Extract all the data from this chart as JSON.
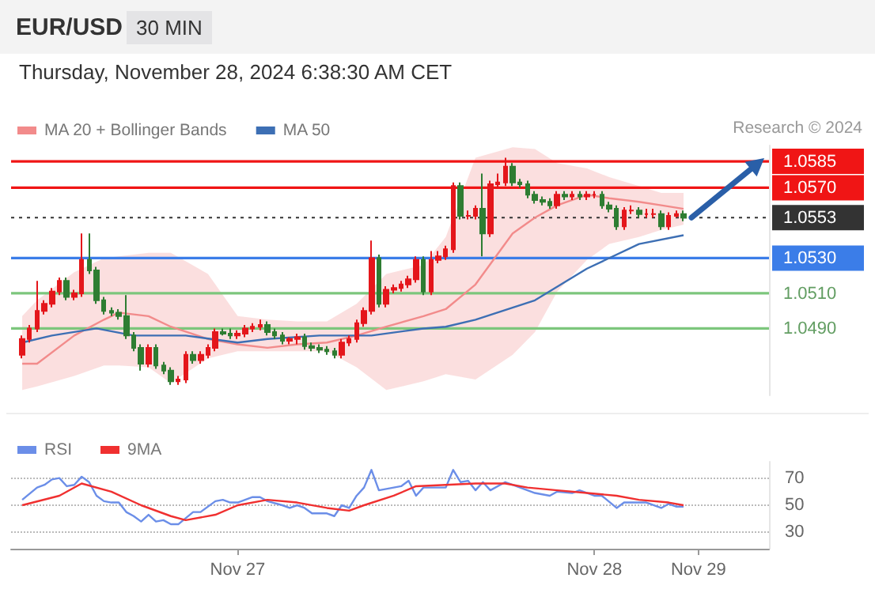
{
  "chart_data": [
    {
      "type": "candlestick",
      "title": "EUR/USD",
      "subtitle": "Thursday, November 28, 2024 6:38:30 AM CET",
      "annotations": [
        "30 MIN",
        "Research © 2024"
      ],
      "categories": [
        null,
        null,
        null,
        null,
        null,
        null,
        null,
        null,
        null,
        null,
        null,
        null,
        null,
        null,
        null,
        null,
        null,
        null,
        null,
        null,
        null,
        null,
        null,
        null,
        null,
        null,
        null,
        null,
        null,
        null,
        null,
        null,
        null,
        null,
        null,
        null,
        null,
        null,
        null,
        null,
        null,
        null,
        null,
        null,
        null,
        null,
        null,
        null,
        null,
        null,
        null,
        null,
        null,
        null,
        null,
        null,
        null,
        null,
        null,
        null,
        null,
        null,
        null,
        null,
        null,
        null,
        null,
        null,
        null,
        null,
        null,
        null,
        null,
        null,
        null,
        null,
        null,
        null,
        null,
        null,
        null,
        null,
        null,
        null,
        null,
        null,
        null,
        null,
        null,
        null,
        null,
        null,
        null,
        null,
        null,
        null,
        null,
        null,
        null,
        null,
        null,
        null
      ],
      "ohlc": [
        null,
        [
          1.0475,
          1.0486,
          1.0473,
          1.0484
        ],
        [
          1.0484,
          1.0492,
          1.0482,
          1.049
        ],
        [
          1.049,
          1.0517,
          1.0488,
          1.05
        ],
        [
          1.05,
          1.0506,
          1.0498,
          1.0504
        ],
        [
          1.0504,
          1.0513,
          1.0502,
          1.0511
        ],
        [
          1.0511,
          1.0519,
          1.0509,
          1.0517
        ],
        [
          1.0517,
          1.0519,
          1.0506,
          1.0508
        ],
        [
          1.0508,
          1.0512,
          1.0506,
          1.051
        ],
        [
          1.051,
          1.0544,
          1.0508,
          1.0529
        ],
        [
          1.0529,
          1.0544,
          1.0521,
          1.0523
        ],
        [
          1.0523,
          1.0525,
          1.0504,
          1.0506
        ],
        [
          1.0506,
          1.0508,
          1.0498,
          1.05
        ],
        [
          1.05,
          1.0502,
          1.0497,
          1.0499
        ],
        [
          1.0499,
          1.0501,
          1.0495,
          1.0497
        ],
        [
          1.0497,
          1.0509,
          1.0484,
          1.0486
        ],
        [
          1.0486,
          1.0488,
          1.0477,
          1.0479
        ],
        [
          1.0479,
          1.0481,
          1.0466,
          1.047
        ],
        [
          1.047,
          1.0481,
          1.0468,
          1.0479
        ],
        [
          1.0479,
          1.0481,
          1.0467,
          1.0469
        ],
        [
          1.0469,
          1.0471,
          1.0464,
          1.0466
        ],
        [
          1.0466,
          1.0468,
          1.0458,
          1.046
        ],
        [
          1.046,
          1.0463,
          1.0458,
          1.0461
        ],
        [
          1.0461,
          1.0477,
          1.0459,
          1.0475
        ],
        [
          1.0475,
          1.0477,
          1.047,
          1.0472
        ],
        [
          1.0472,
          1.0477,
          1.047,
          1.0475
        ],
        [
          1.0475,
          1.0481,
          1.0473,
          1.0479
        ],
        [
          1.0479,
          1.049,
          1.0477,
          1.0488
        ],
        [
          1.0488,
          1.049,
          1.0486,
          1.0487
        ],
        [
          1.0487,
          1.049,
          1.0484,
          1.0486
        ],
        [
          1.0486,
          1.0489,
          1.0484,
          1.0487
        ],
        [
          1.0487,
          1.0492,
          1.0485,
          1.049
        ],
        [
          1.049,
          1.0493,
          1.0488,
          1.0491
        ],
        [
          1.0491,
          1.0495,
          1.0489,
          1.0492
        ],
        [
          1.0492,
          1.0494,
          1.0486,
          1.0488
        ],
        [
          1.0488,
          1.049,
          1.0484,
          1.0486
        ],
        [
          1.0486,
          1.0488,
          1.0481,
          1.0483
        ],
        [
          1.0483,
          1.0485,
          1.0481,
          1.0484
        ],
        [
          1.0484,
          1.0487,
          1.0481,
          1.0485
        ],
        [
          1.0485,
          1.0487,
          1.0478,
          1.048
        ],
        [
          1.048,
          1.0482,
          1.0477,
          1.0479
        ],
        [
          1.0479,
          1.0481,
          1.0476,
          1.0478
        ],
        [
          1.0478,
          1.048,
          1.0475,
          1.0477
        ],
        [
          1.0477,
          1.0479,
          1.0473,
          1.0475
        ],
        [
          1.0475,
          1.0484,
          1.0473,
          1.0482
        ],
        [
          1.0482,
          1.0486,
          1.048,
          1.0484
        ],
        [
          1.0484,
          1.0495,
          1.0482,
          1.0493
        ],
        [
          1.0493,
          1.0502,
          1.0491,
          1.05
        ],
        [
          1.05,
          1.054,
          1.0498,
          1.053
        ],
        [
          1.053,
          1.0532,
          1.0502,
          1.0504
        ],
        [
          1.0504,
          1.0514,
          1.0502,
          1.0512
        ],
        [
          1.0512,
          1.0515,
          1.051,
          1.0513
        ],
        [
          1.0513,
          1.0517,
          1.0511,
          1.0515
        ],
        [
          1.0515,
          1.052,
          1.0513,
          1.0518
        ],
        [
          1.0518,
          1.0531,
          1.0516,
          1.0529
        ],
        [
          1.0529,
          1.0531,
          1.0509,
          1.0511
        ],
        [
          1.0511,
          1.0534,
          1.0509,
          1.0529
        ],
        [
          1.0529,
          1.0534,
          1.0527,
          1.0531
        ],
        [
          1.0531,
          1.0537,
          1.0529,
          1.0535
        ],
        [
          1.0535,
          1.0573,
          1.0533,
          1.0571
        ],
        [
          1.0571,
          1.0573,
          1.0552,
          1.0554
        ],
        [
          1.0554,
          1.0557,
          1.0552,
          1.0554
        ],
        [
          1.0554,
          1.056,
          1.0552,
          1.0558
        ],
        [
          1.0558,
          1.0578,
          1.0531,
          1.0544
        ],
        [
          1.0544,
          1.0574,
          1.0542,
          1.0572
        ],
        [
          1.0572,
          1.0578,
          1.057,
          1.0573
        ],
        [
          1.0573,
          1.0587,
          1.0571,
          1.0582
        ],
        [
          1.0582,
          1.0584,
          1.0571,
          1.0573
        ],
        [
          1.0573,
          1.0575,
          1.057,
          1.0572
        ],
        [
          1.0572,
          1.0574,
          1.0564,
          1.0566
        ],
        [
          1.0566,
          1.0568,
          1.0561,
          1.0563
        ],
        [
          1.0563,
          1.0565,
          1.056,
          1.0562
        ],
        [
          1.0562,
          1.0564,
          1.0558,
          1.056
        ],
        [
          1.056,
          1.0568,
          1.0558,
          1.0566
        ],
        [
          1.0566,
          1.0568,
          1.0563,
          1.0565
        ],
        [
          1.0565,
          1.0568,
          1.0563,
          1.0566
        ],
        [
          1.0566,
          1.0568,
          1.0563,
          1.0565
        ],
        [
          1.0565,
          1.0568,
          1.0563,
          1.0566
        ],
        [
          1.0566,
          1.0568,
          1.0564,
          1.0566
        ],
        [
          1.0566,
          1.0568,
          1.0558,
          1.056
        ],
        [
          1.056,
          1.0562,
          1.0556,
          1.0558
        ],
        [
          1.0558,
          1.056,
          1.0546,
          1.0548
        ],
        [
          1.0548,
          1.0559,
          1.0546,
          1.0557
        ],
        [
          1.0557,
          1.056,
          1.0555,
          1.0557
        ],
        [
          1.0557,
          1.0559,
          1.0553,
          1.0555
        ],
        [
          1.0555,
          1.0558,
          1.0553,
          1.0555
        ],
        [
          1.0555,
          1.0558,
          1.0553,
          1.0555
        ],
        [
          1.0555,
          1.0557,
          1.0546,
          1.0548
        ],
        [
          1.0548,
          1.0556,
          1.0546,
          1.0554
        ],
        [
          1.0554,
          1.0557,
          1.0553,
          1.0555
        ],
        [
          1.0555,
          1.0557,
          1.0551,
          1.0553
        ],
        null,
        null,
        null,
        null,
        null,
        null,
        null,
        null,
        null,
        null,
        null
      ],
      "series": [
        {
          "name": "MA 20 + Bollinger Bands",
          "type": "line",
          "color": "#f28b8b",
          "values": [
            null,
            1.047,
            null,
            1.047,
            null,
            null,
            null,
            null,
            1.0486,
            null,
            null,
            null,
            1.0495,
            null,
            1.0499,
            null,
            null,
            null,
            1.0497,
            null,
            null,
            1.0491,
            null,
            null,
            null,
            null,
            1.0484,
            null,
            null,
            null,
            1.0481,
            null,
            null,
            null,
            1.0479,
            null,
            null,
            null,
            1.0481,
            null,
            null,
            null,
            1.0482,
            null,
            null,
            null,
            1.0486,
            null,
            null,
            null,
            1.0491,
            null,
            null,
            null,
            null,
            1.0497,
            null,
            null,
            1.0501,
            null,
            null,
            null,
            1.0515,
            null,
            null,
            null,
            null,
            1.0544,
            null,
            null,
            1.0553,
            null,
            null,
            1.056,
            null,
            null,
            null,
            1.0566,
            null,
            null,
            1.0564,
            null,
            null,
            null,
            1.0562,
            null,
            null,
            1.056,
            null,
            null,
            1.0558,
            null,
            null,
            null,
            null,
            null,
            null,
            null,
            null,
            null,
            null,
            null
          ],
          "lower": [
            null,
            1.0455,
            null,
            1.0457,
            null,
            null,
            null,
            null,
            1.0463,
            null,
            null,
            null,
            1.0469,
            null,
            1.0469,
            null,
            null,
            null,
            1.0468,
            null,
            null,
            1.0459,
            null,
            null,
            null,
            null,
            1.0473,
            null,
            null,
            null,
            1.0477,
            null,
            null,
            null,
            1.0477,
            null,
            null,
            null,
            1.0477,
            null,
            null,
            null,
            1.0477,
            null,
            null,
            null,
            1.0468,
            null,
            null,
            null,
            1.0455,
            null,
            null,
            null,
            null,
            1.046,
            null,
            null,
            1.0464,
            null,
            null,
            null,
            1.0461,
            null,
            null,
            null,
            null,
            1.0475,
            null,
            null,
            1.0488,
            null,
            null,
            1.0511,
            null,
            null,
            null,
            1.0529,
            null,
            null,
            1.0538,
            null,
            null,
            null,
            1.0542,
            null,
            null,
            1.0546,
            null,
            null,
            1.0549,
            null,
            null,
            null,
            null,
            null,
            null,
            null,
            null,
            null,
            null,
            null
          ],
          "upper": [
            null,
            1.0497,
            null,
            1.0506,
            null,
            null,
            null,
            null,
            1.0522,
            null,
            null,
            null,
            1.053,
            null,
            1.0531,
            null,
            null,
            null,
            1.0533,
            null,
            null,
            1.0533,
            null,
            null,
            null,
            null,
            1.0521,
            null,
            null,
            null,
            1.0497,
            null,
            null,
            null,
            1.0495,
            null,
            null,
            null,
            1.0494,
            null,
            null,
            null,
            1.0494,
            null,
            null,
            null,
            1.0504,
            null,
            null,
            null,
            1.0521,
            null,
            null,
            null,
            null,
            1.0526,
            null,
            null,
            1.0542,
            null,
            null,
            null,
            1.0587,
            null,
            null,
            null,
            null,
            1.0593,
            null,
            null,
            1.0592,
            null,
            null,
            1.0584,
            null,
            null,
            null,
            1.0581,
            null,
            null,
            1.0576,
            null,
            null,
            null,
            1.0571,
            null,
            null,
            1.0567,
            null,
            null,
            1.0567,
            null,
            null,
            null,
            null,
            null,
            null,
            null,
            null,
            null,
            null,
            null
          ]
        },
        {
          "name": "MA 50",
          "type": "line",
          "color": "#3d6fb4",
          "values": [
            null,
            1.0482,
            null,
            null,
            null,
            1.0486,
            null,
            null,
            null,
            null,
            null,
            1.049,
            null,
            null,
            null,
            null,
            1.0486,
            null,
            null,
            null,
            null,
            null,
            null,
            1.0486,
            null,
            null,
            null,
            null,
            null,
            null,
            1.0482,
            null,
            null,
            null,
            1.0484,
            null,
            null,
            null,
            null,
            null,
            null,
            1.0486,
            null,
            null,
            null,
            null,
            null,
            null,
            1.0486,
            null,
            null,
            null,
            null,
            null,
            null,
            1.049,
            null,
            null,
            1.0491,
            null,
            null,
            null,
            1.0495,
            null,
            null,
            null,
            null,
            null,
            null,
            null,
            1.0506,
            null,
            null,
            null,
            null,
            null,
            null,
            1.0524,
            null,
            null,
            null,
            null,
            null,
            null,
            1.0538,
            null,
            null,
            null,
            null,
            null,
            1.0543,
            null,
            null,
            null,
            null,
            null,
            null,
            null,
            null,
            null,
            null,
            null
          ]
        }
      ],
      "ylim": [
        1.0452,
        1.0594
      ],
      "yticks": [
        {
          "value": 1.049,
          "label": "1.0490"
        },
        {
          "value": 1.051,
          "label": "1.0510"
        },
        {
          "value": 1.053,
          "label": "1.0530"
        },
        1.0553,
        {
          "value": 1.057,
          "label": "1.0570"
        },
        1.0585
      ],
      "tick_labels": "y",
      "legend": "top left",
      "marker": "none",
      "ref_lines": [
        {
          "axis": "y",
          "value": 1.0585,
          "color": "#f01515"
        },
        {
          "axis": "y",
          "value": 1.057,
          "color": "#f01515"
        },
        {
          "axis": "y",
          "value": 1.0553,
          "color": "#333333",
          "line_style": "dotted"
        },
        {
          "axis": "y",
          "value": 1.053,
          "color": "#3b7de8"
        },
        {
          "axis": "y",
          "value": 1.051,
          "color": "#7cc67c"
        },
        {
          "axis": "y",
          "value": 1.049,
          "color": "#7cc67c"
        }
      ]
    },
    {
      "type": "line",
      "categories": [
        null,
        null,
        null,
        null,
        null,
        null,
        null,
        null,
        null,
        null,
        null,
        null,
        null,
        null,
        null,
        null,
        null,
        null,
        null,
        null,
        null,
        null,
        null,
        null,
        null,
        null,
        null,
        null,
        null,
        null,
        "Nov 27",
        null,
        null,
        null,
        null,
        null,
        null,
        null,
        null,
        null,
        null,
        null,
        null,
        null,
        null,
        null,
        null,
        null,
        null,
        null,
        null,
        null,
        null,
        null,
        null,
        null,
        null,
        null,
        null,
        null,
        null,
        null,
        null,
        null,
        null,
        null,
        null,
        null,
        null,
        null,
        null,
        null,
        null,
        null,
        null,
        null,
        null,
        null,
        "Nov 28",
        null,
        null,
        null,
        null,
        null,
        null,
        null,
        null,
        null,
        null,
        null,
        null,
        null,
        "Nov 29",
        null,
        null,
        null,
        null,
        null,
        null,
        null,
        null,
        null
      ],
      "ylim": [
        18,
        82
      ],
      "yticks": [
        30,
        50,
        70
      ],
      "grid": "y",
      "legend": "top left",
      "marker": "none",
      "series": [
        {
          "name": "RSI",
          "color": "#6b8ee8",
          "values": [
            null,
            54,
            null,
            63,
            65,
            69,
            70,
            64,
            65,
            71,
            67,
            57,
            53,
            52,
            52,
            45,
            42,
            38,
            43,
            38,
            39,
            36,
            36,
            null,
            45,
            45,
            null,
            53,
            54,
            52,
            52,
            null,
            56,
            56,
            53,
            null,
            50,
            48,
            50,
            48,
            44,
            null,
            44,
            42,
            50,
            48,
            57,
            63,
            76,
            61,
            null,
            63,
            64,
            68,
            57,
            63,
            null,
            63,
            63,
            76,
            67,
            68,
            61,
            67,
            61,
            null,
            67,
            65,
            null,
            61,
            59,
            null,
            57,
            60,
            null,
            59,
            61,
            null,
            57,
            57,
            null,
            48,
            52,
            52,
            52,
            52,
            null,
            48,
            51,
            49,
            49,
            null,
            null,
            null,
            null,
            null,
            null,
            null,
            null,
            null,
            null,
            null
          ]
        },
        {
          "name": "9MA",
          "color": "#f03030",
          "values": [
            null,
            50,
            null,
            null,
            null,
            null,
            57,
            null,
            null,
            66,
            null,
            null,
            null,
            60,
            null,
            null,
            null,
            50,
            null,
            null,
            null,
            42,
            null,
            39,
            null,
            null,
            null,
            43,
            null,
            null,
            50,
            null,
            null,
            null,
            54,
            null,
            null,
            null,
            52,
            null,
            null,
            null,
            48,
            null,
            null,
            46,
            null,
            50,
            null,
            null,
            null,
            57,
            null,
            null,
            64,
            null,
            null,
            null,
            65,
            null,
            null,
            null,
            66,
            null,
            null,
            null,
            66,
            null,
            null,
            63,
            null,
            null,
            null,
            61,
            null,
            null,
            null,
            59,
            null,
            null,
            null,
            57,
            null,
            null,
            54,
            null,
            null,
            null,
            52,
            null,
            50,
            null,
            null,
            null,
            null,
            null,
            null,
            null,
            null,
            null,
            null,
            null
          ]
        }
      ]
    }
  ]
}
